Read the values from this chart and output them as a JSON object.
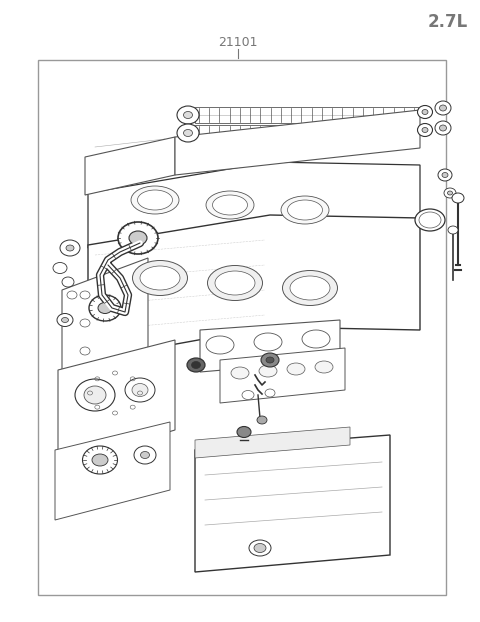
{
  "title_text": "2.7L",
  "part_number": "21101",
  "title_color": "#777777",
  "part_number_color": "#777777",
  "background_color": "#ffffff",
  "border_color": "#999999",
  "fig_width": 4.8,
  "fig_height": 6.22,
  "dpi": 100,
  "title_fontsize": 12,
  "part_number_fontsize": 9,
  "line_color": "#777777"
}
